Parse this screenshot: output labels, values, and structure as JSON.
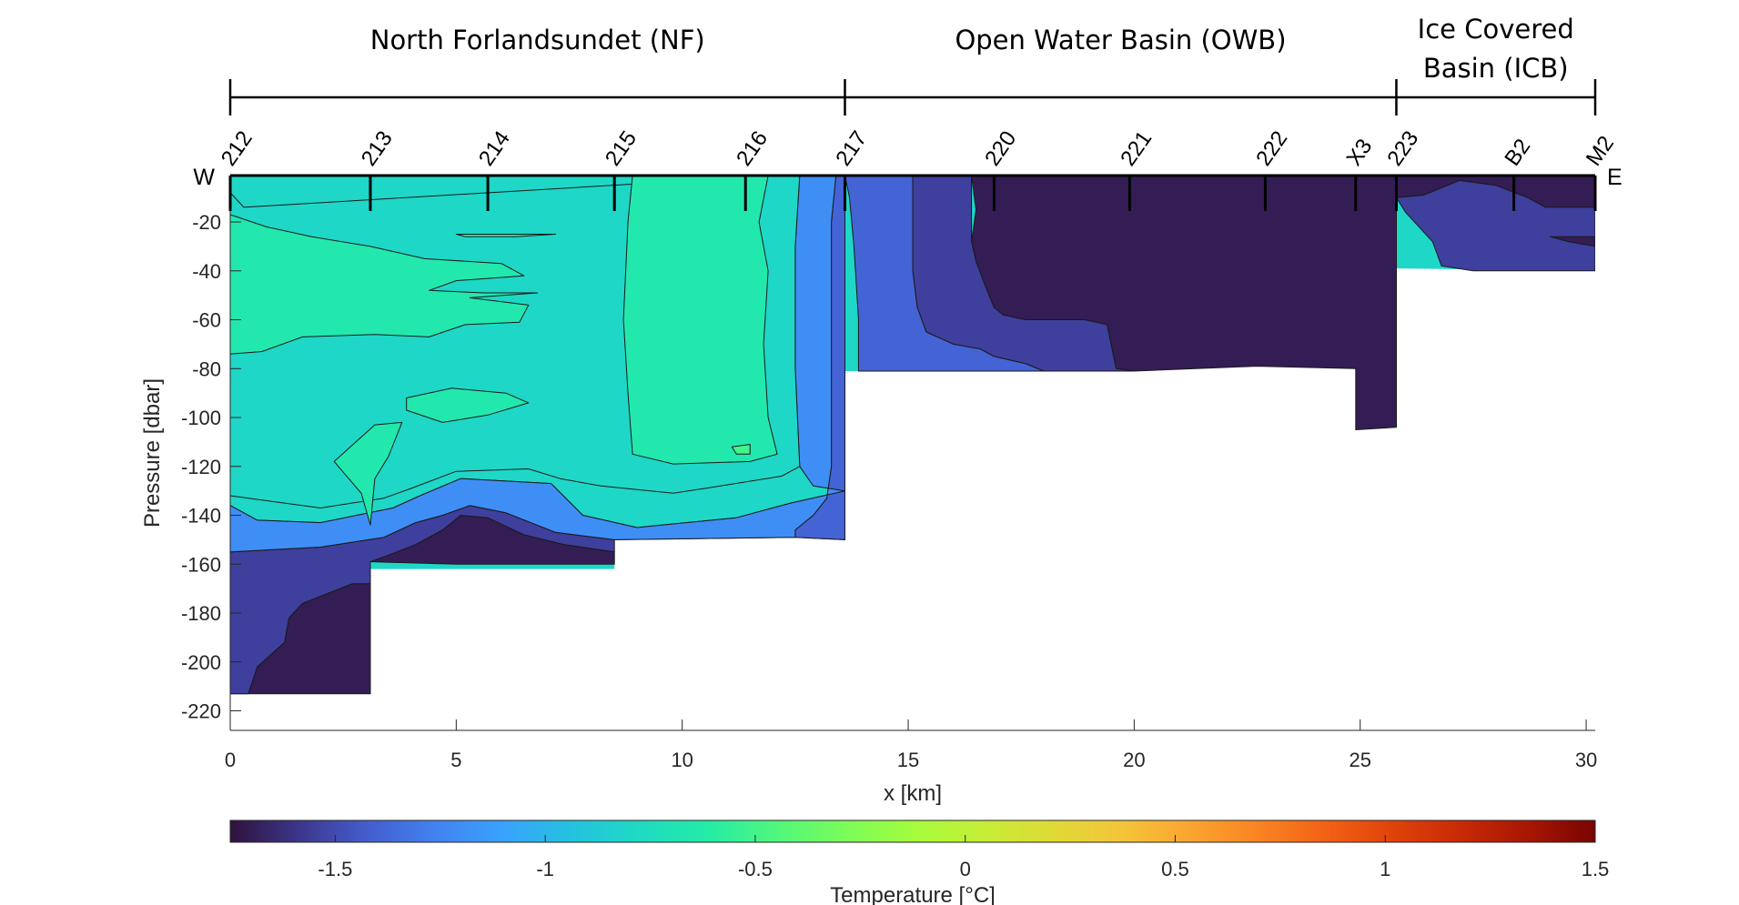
{
  "regions": [
    {
      "label": "North Forlandsundet (NF)",
      "x_start_km": 0,
      "x_end_km": 13.6
    },
    {
      "label": "Open Water Basin (OWB)",
      "x_start_km": 13.6,
      "x_end_km": 25.8
    },
    {
      "label_lines": [
        "Ice Covered",
        "Basin (ICB)"
      ],
      "x_start_km": 25.8,
      "x_end_km": 30.2
    }
  ],
  "direction_labels": {
    "west": "W",
    "east": "E"
  },
  "stations": [
    {
      "name": "212",
      "x": 0
    },
    {
      "name": "213",
      "x": 3.1
    },
    {
      "name": "214",
      "x": 5.7
    },
    {
      "name": "215",
      "x": 8.5
    },
    {
      "name": "216",
      "x": 11.4
    },
    {
      "name": "217",
      "x": 13.6
    },
    {
      "name": "220",
      "x": 16.9
    },
    {
      "name": "221",
      "x": 19.9
    },
    {
      "name": "222",
      "x": 22.9
    },
    {
      "name": "X3",
      "x": 24.9
    },
    {
      "name": "223",
      "x": 25.8
    },
    {
      "name": "B2",
      "x": 28.4
    },
    {
      "name": "M2",
      "x": 30.2
    }
  ],
  "chart_data": {
    "type": "heatmap",
    "title": "",
    "xlabel": "x [km]",
    "ylabel": "Pressure [dbar]",
    "xlim": [
      0,
      30.2
    ],
    "ylim": [
      -228,
      -1
    ],
    "x_ticks": [
      0,
      5,
      10,
      15,
      20,
      25,
      30
    ],
    "y_ticks": [
      -20,
      -40,
      -60,
      -80,
      -100,
      -120,
      -140,
      -160,
      -180,
      -200,
      -220
    ],
    "colorbar": {
      "label": "Temperature [°C]",
      "range": [
        -1.75,
        1.5
      ],
      "ticks": [
        -1.5,
        -1,
        -0.5,
        0,
        0.5,
        1,
        1.5
      ],
      "colormap": "turbo"
    },
    "bathymetry_km_dbar": [
      [
        0,
        -213
      ],
      [
        3.1,
        -213
      ],
      [
        3.1,
        -162
      ],
      [
        8.5,
        -162
      ],
      [
        8.5,
        -150
      ],
      [
        12.5,
        -149
      ],
      [
        13.6,
        -150
      ],
      [
        13.6,
        -81
      ],
      [
        20,
        -81
      ],
      [
        22.7,
        -79
      ],
      [
        24.9,
        -80
      ],
      [
        24.9,
        -105
      ],
      [
        25.8,
        -104
      ],
      [
        25.8,
        -39
      ],
      [
        30.2,
        -40
      ]
    ],
    "temperature_bands_degC": [
      {
        "level": -1.7,
        "polygon": [
          [
            0,
            -213
          ],
          [
            3.1,
            -213
          ],
          [
            3.1,
            -168
          ],
          [
            2.7,
            -168
          ],
          [
            1.6,
            -176
          ],
          [
            1.3,
            -182
          ],
          [
            1.2,
            -192
          ],
          [
            0.6,
            -202
          ],
          [
            0.4,
            -213
          ]
        ]
      },
      {
        "level": -1.7,
        "polygon": [
          [
            5.0,
            -160
          ],
          [
            8.5,
            -160
          ],
          [
            8.5,
            -155
          ],
          [
            7.4,
            -152
          ],
          [
            6.5,
            -148
          ],
          [
            5.7,
            -141
          ],
          [
            5.1,
            -140
          ],
          [
            4.7,
            -146
          ],
          [
            4.1,
            -152
          ],
          [
            3.4,
            -157
          ],
          [
            3.1,
            -159
          ]
        ]
      },
      {
        "level": -1.7,
        "polygon": [
          [
            16.4,
            -1
          ],
          [
            25.8,
            -1
          ],
          [
            25.8,
            -104
          ],
          [
            24.9,
            -105
          ],
          [
            24.9,
            -80
          ],
          [
            22.7,
            -79
          ],
          [
            20,
            -81
          ],
          [
            19.6,
            -80
          ],
          [
            19.4,
            -62
          ],
          [
            18.9,
            -60
          ],
          [
            17.6,
            -60
          ],
          [
            17.1,
            -58
          ],
          [
            16.9,
            -55
          ],
          [
            16.7,
            -46
          ],
          [
            16.5,
            -36
          ],
          [
            16.4,
            -28
          ],
          [
            16.5,
            -15
          ]
        ]
      },
      {
        "level": -1.7,
        "polygon": [
          [
            25.8,
            -1
          ],
          [
            30.2,
            -1
          ],
          [
            30.2,
            -14
          ],
          [
            29.1,
            -14
          ],
          [
            28.7,
            -10
          ],
          [
            28.0,
            -5
          ],
          [
            27.2,
            -3
          ],
          [
            26.4,
            -9
          ],
          [
            25.8,
            -10
          ]
        ]
      },
      {
        "level": -1.7,
        "polygon": [
          [
            29.2,
            -26
          ],
          [
            30.2,
            -26
          ],
          [
            30.2,
            -30
          ],
          [
            29.6,
            -28
          ]
        ]
      },
      {
        "level": -1.55,
        "polygon": [
          [
            15.1,
            -1
          ],
          [
            16.4,
            -1
          ],
          [
            16.4,
            -28
          ],
          [
            16.5,
            -36
          ],
          [
            16.7,
            -46
          ],
          [
            16.9,
            -55
          ],
          [
            17.1,
            -58
          ],
          [
            17.6,
            -60
          ],
          [
            18.9,
            -60
          ],
          [
            19.4,
            -62
          ],
          [
            19.6,
            -80
          ],
          [
            20,
            -81
          ],
          [
            18.0,
            -81
          ],
          [
            17.6,
            -78
          ],
          [
            16.9,
            -75
          ],
          [
            16.6,
            -72
          ],
          [
            16.0,
            -70
          ],
          [
            15.4,
            -65
          ],
          [
            15.2,
            -55
          ],
          [
            15.1,
            -40
          ],
          [
            15.1,
            -20
          ]
        ]
      },
      {
        "level": -1.55,
        "polygon": [
          [
            25.8,
            -10
          ],
          [
            26.4,
            -9
          ],
          [
            27.2,
            -3
          ],
          [
            28.0,
            -5
          ],
          [
            28.7,
            -10
          ],
          [
            29.1,
            -14
          ],
          [
            30.2,
            -14
          ],
          [
            30.2,
            -26
          ],
          [
            29.2,
            -26
          ],
          [
            29.6,
            -28
          ],
          [
            30.2,
            -30
          ],
          [
            30.2,
            -40
          ],
          [
            27.5,
            -40
          ],
          [
            26.8,
            -38
          ],
          [
            26.6,
            -28
          ],
          [
            26.0,
            -16
          ]
        ]
      },
      {
        "level": -1.55,
        "polygon": [
          [
            0,
            -155
          ],
          [
            0,
            -213
          ],
          [
            0.4,
            -213
          ],
          [
            0.6,
            -202
          ],
          [
            1.2,
            -192
          ],
          [
            1.3,
            -182
          ],
          [
            1.6,
            -176
          ],
          [
            2.7,
            -168
          ],
          [
            3.1,
            -168
          ],
          [
            3.1,
            -159
          ],
          [
            3.4,
            -157
          ],
          [
            4.1,
            -152
          ],
          [
            4.7,
            -146
          ],
          [
            5.1,
            -140
          ],
          [
            5.7,
            -141
          ],
          [
            6.5,
            -148
          ],
          [
            7.4,
            -152
          ],
          [
            8.5,
            -155
          ],
          [
            8.5,
            -150
          ],
          [
            7.2,
            -147
          ],
          [
            6.1,
            -139
          ],
          [
            5.3,
            -136
          ],
          [
            4.7,
            -140
          ],
          [
            4.1,
            -143
          ],
          [
            3.4,
            -149
          ],
          [
            2.0,
            -153
          ],
          [
            1.0,
            -154
          ]
        ]
      },
      {
        "level": -1.4,
        "polygon": [
          [
            13.6,
            -1
          ],
          [
            15.1,
            -1
          ],
          [
            15.1,
            -20
          ],
          [
            15.1,
            -40
          ],
          [
            15.2,
            -55
          ],
          [
            15.4,
            -65
          ],
          [
            16.0,
            -70
          ],
          [
            16.6,
            -72
          ],
          [
            16.9,
            -75
          ],
          [
            17.6,
            -78
          ],
          [
            18.0,
            -81
          ],
          [
            13.9,
            -81
          ],
          [
            13.9,
            -60
          ],
          [
            13.8,
            -30
          ],
          [
            13.7,
            -10
          ]
        ]
      },
      {
        "level": -1.4,
        "polygon": [
          [
            0,
            -136
          ],
          [
            0,
            -155
          ],
          [
            1.0,
            -154
          ],
          [
            2.0,
            -153
          ],
          [
            3.4,
            -149
          ],
          [
            4.1,
            -143
          ],
          [
            4.7,
            -140
          ],
          [
            5.3,
            -136
          ],
          [
            6.1,
            -139
          ],
          [
            7.2,
            -147
          ],
          [
            8.5,
            -150
          ],
          [
            12.5,
            -149
          ],
          [
            13.6,
            -150
          ],
          [
            13.6,
            -130
          ],
          [
            12.4,
            -135
          ],
          [
            11.2,
            -141
          ],
          [
            9.0,
            -145
          ],
          [
            7.8,
            -140
          ],
          [
            7.1,
            -127
          ],
          [
            5.1,
            -125
          ],
          [
            4.2,
            -132
          ],
          [
            3.6,
            -137
          ],
          [
            2.0,
            -143
          ],
          [
            0.6,
            -142
          ]
        ]
      },
      {
        "level": -1.4,
        "polygon": [
          [
            13.4,
            -1
          ],
          [
            13.6,
            -1
          ],
          [
            13.6,
            -150
          ],
          [
            12.5,
            -149
          ],
          [
            12.5,
            -146
          ],
          [
            12.9,
            -140
          ],
          [
            13.2,
            -133
          ],
          [
            13.3,
            -120
          ],
          [
            13.3,
            -60
          ],
          [
            13.3,
            -20
          ]
        ]
      },
      {
        "level": -1.2,
        "polygon": [
          [
            12.6,
            -1
          ],
          [
            13.4,
            -1
          ],
          [
            13.3,
            -20
          ],
          [
            13.3,
            -60
          ],
          [
            13.3,
            -120
          ],
          [
            13.2,
            -133
          ],
          [
            12.9,
            -140
          ],
          [
            12.5,
            -146
          ],
          [
            12.5,
            -149
          ],
          [
            8.5,
            -150
          ],
          [
            7.2,
            -147
          ],
          [
            6.1,
            -139
          ],
          [
            5.3,
            -136
          ],
          [
            4.7,
            -140
          ],
          [
            4.1,
            -143
          ],
          [
            3.4,
            -149
          ],
          [
            2.0,
            -153
          ],
          [
            1.0,
            -154
          ],
          [
            0,
            -155
          ],
          [
            0,
            -136
          ],
          [
            0.6,
            -142
          ],
          [
            2.0,
            -143
          ],
          [
            3.6,
            -137
          ],
          [
            4.2,
            -132
          ],
          [
            5.1,
            -125
          ],
          [
            7.1,
            -127
          ],
          [
            7.8,
            -140
          ],
          [
            9.0,
            -145
          ],
          [
            11.2,
            -141
          ],
          [
            12.4,
            -135
          ],
          [
            13.6,
            -130
          ],
          [
            12.9,
            -128
          ],
          [
            12.6,
            -120
          ],
          [
            12.5,
            -80
          ],
          [
            12.5,
            -30
          ]
        ]
      },
      {
        "level": -0.8,
        "polygon": [
          [
            12.1,
            -1
          ],
          [
            12.6,
            -1
          ],
          [
            12.5,
            -30
          ],
          [
            12.5,
            -80
          ],
          [
            12.6,
            -120
          ],
          [
            12.2,
            -124
          ],
          [
            10.5,
            -129
          ],
          [
            9.8,
            -131
          ],
          [
            8.2,
            -128
          ],
          [
            7.3,
            -125
          ],
          [
            6.6,
            -121
          ],
          [
            5.0,
            -122
          ],
          [
            4.0,
            -129
          ],
          [
            3.4,
            -133
          ],
          [
            2.0,
            -137
          ],
          [
            0.4,
            -133
          ],
          [
            0,
            -132
          ],
          [
            0,
            -8
          ],
          [
            0.3,
            -14
          ]
        ]
      },
      {
        "level": -0.65,
        "polygon": [
          [
            8.9,
            -1
          ],
          [
            11.9,
            -1
          ],
          [
            11.7,
            -20
          ],
          [
            11.9,
            -40
          ],
          [
            11.8,
            -70
          ],
          [
            11.9,
            -100
          ],
          [
            12.1,
            -115
          ],
          [
            11.5,
            -118
          ],
          [
            9.8,
            -119
          ],
          [
            8.9,
            -115
          ],
          [
            8.8,
            -90
          ],
          [
            8.7,
            -60
          ],
          [
            8.8,
            -20
          ]
        ]
      },
      {
        "level": -0.65,
        "polygon": [
          [
            0,
            -17
          ],
          [
            0.8,
            -22
          ],
          [
            1.8,
            -26
          ],
          [
            3.1,
            -30
          ],
          [
            4.3,
            -35
          ],
          [
            6.0,
            -37
          ],
          [
            6.5,
            -42
          ],
          [
            5.0,
            -44
          ],
          [
            4.4,
            -48
          ],
          [
            5.6,
            -49
          ],
          [
            6.8,
            -49
          ],
          [
            5.3,
            -51
          ],
          [
            6.6,
            -54
          ],
          [
            6.4,
            -61
          ],
          [
            5.2,
            -62
          ],
          [
            4.4,
            -67
          ],
          [
            3.2,
            -66
          ],
          [
            1.6,
            -67
          ],
          [
            0.7,
            -73
          ],
          [
            0,
            -74
          ]
        ]
      },
      {
        "level": -0.65,
        "polygon": [
          [
            3.9,
            -92
          ],
          [
            4.9,
            -88
          ],
          [
            6.1,
            -90
          ],
          [
            6.6,
            -94
          ],
          [
            5.7,
            -99
          ],
          [
            4.7,
            -102
          ],
          [
            3.9,
            -97
          ]
        ]
      },
      {
        "level": -0.65,
        "polygon": [
          [
            2.3,
            -118
          ],
          [
            3.2,
            -103
          ],
          [
            3.8,
            -102
          ],
          [
            3.5,
            -116
          ],
          [
            3.2,
            -125
          ],
          [
            3.1,
            -144
          ],
          [
            2.9,
            -131
          ]
        ]
      },
      {
        "level": -0.65,
        "polygon": [
          [
            5.0,
            -25
          ],
          [
            7.2,
            -25
          ],
          [
            6.3,
            -26
          ],
          [
            5.2,
            -26
          ]
        ]
      },
      {
        "level": -0.5,
        "polygon": [
          [
            11.1,
            -112
          ],
          [
            11.5,
            -111
          ],
          [
            11.5,
            -115
          ],
          [
            11.2,
            -115
          ]
        ]
      }
    ]
  }
}
